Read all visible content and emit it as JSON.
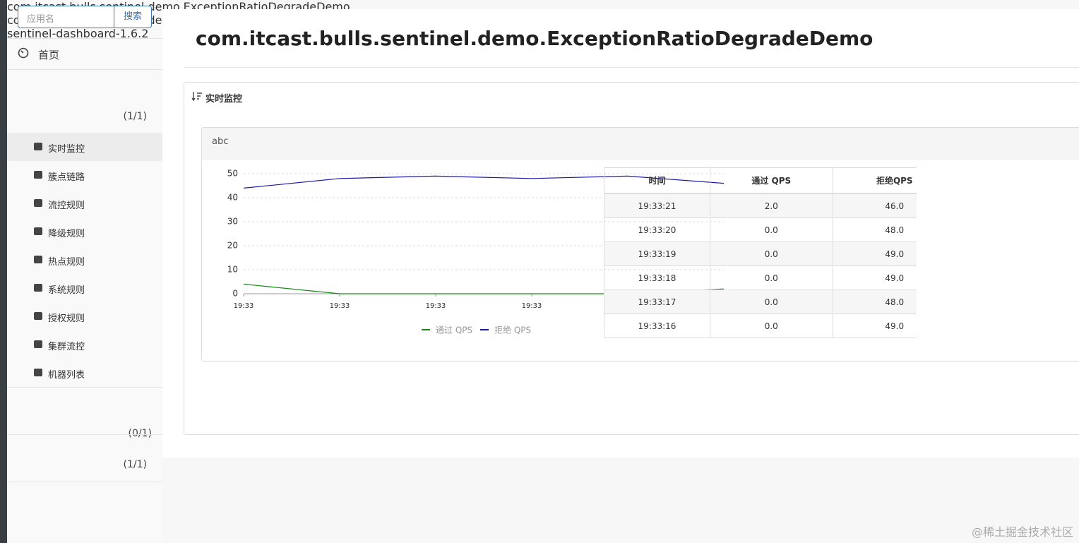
{
  "sidebar": {
    "search_placeholder": "应用名",
    "search_button": "搜索",
    "home": "首页",
    "apps": [
      {
        "name": "com.itcast.bulls.sentinel.demo.ExceptionRatioDegradeDemo",
        "count": "(1/1)",
        "menu": [
          "实时监控",
          "簇点链路",
          "流控规则",
          "降级规则",
          "热点规则",
          "系统规则",
          "授权规则",
          "集群流控",
          "机器列表"
        ]
      },
      {
        "name": "com.itcast.bulls.sentinel.demo.RtDegradeDemo",
        "count": "(0/1)"
      },
      {
        "name": "sentinel-dashboard-1.6.2",
        "count": "(1/1)"
      }
    ]
  },
  "header": {
    "title": "com.itcast.bulls.sentinel.demo.ExceptionRatioDegradeDemo"
  },
  "panel": {
    "title": "实时监控",
    "resource": "abc"
  },
  "chart_data": {
    "type": "line",
    "categories": [
      "19:33",
      "19:33",
      "19:33",
      "19:33",
      "19:33",
      "19:33"
    ],
    "series": [
      {
        "name": "通过 QPS",
        "color": "#1a8a1a",
        "values": [
          4,
          0,
          0,
          0,
          0,
          2
        ]
      },
      {
        "name": "拒绝 QPS",
        "color": "#1a1aa6",
        "values": [
          44,
          48,
          49,
          48,
          49,
          46
        ]
      }
    ],
    "ylim": [
      0,
      50
    ],
    "yticks": [
      0,
      10,
      20,
      30,
      40,
      50
    ],
    "grid": true,
    "legend": "bottom"
  },
  "table": {
    "columns": [
      "时间",
      "通过 QPS",
      "拒绝QPS"
    ],
    "rows": [
      [
        "19:33:21",
        "2.0",
        "46.0"
      ],
      [
        "19:33:20",
        "0.0",
        "48.0"
      ],
      [
        "19:33:19",
        "0.0",
        "49.0"
      ],
      [
        "19:33:18",
        "0.0",
        "49.0"
      ],
      [
        "19:33:17",
        "0.0",
        "48.0"
      ],
      [
        "19:33:16",
        "0.0",
        "49.0"
      ]
    ]
  },
  "watermark": "@稀土掘金技术社区"
}
